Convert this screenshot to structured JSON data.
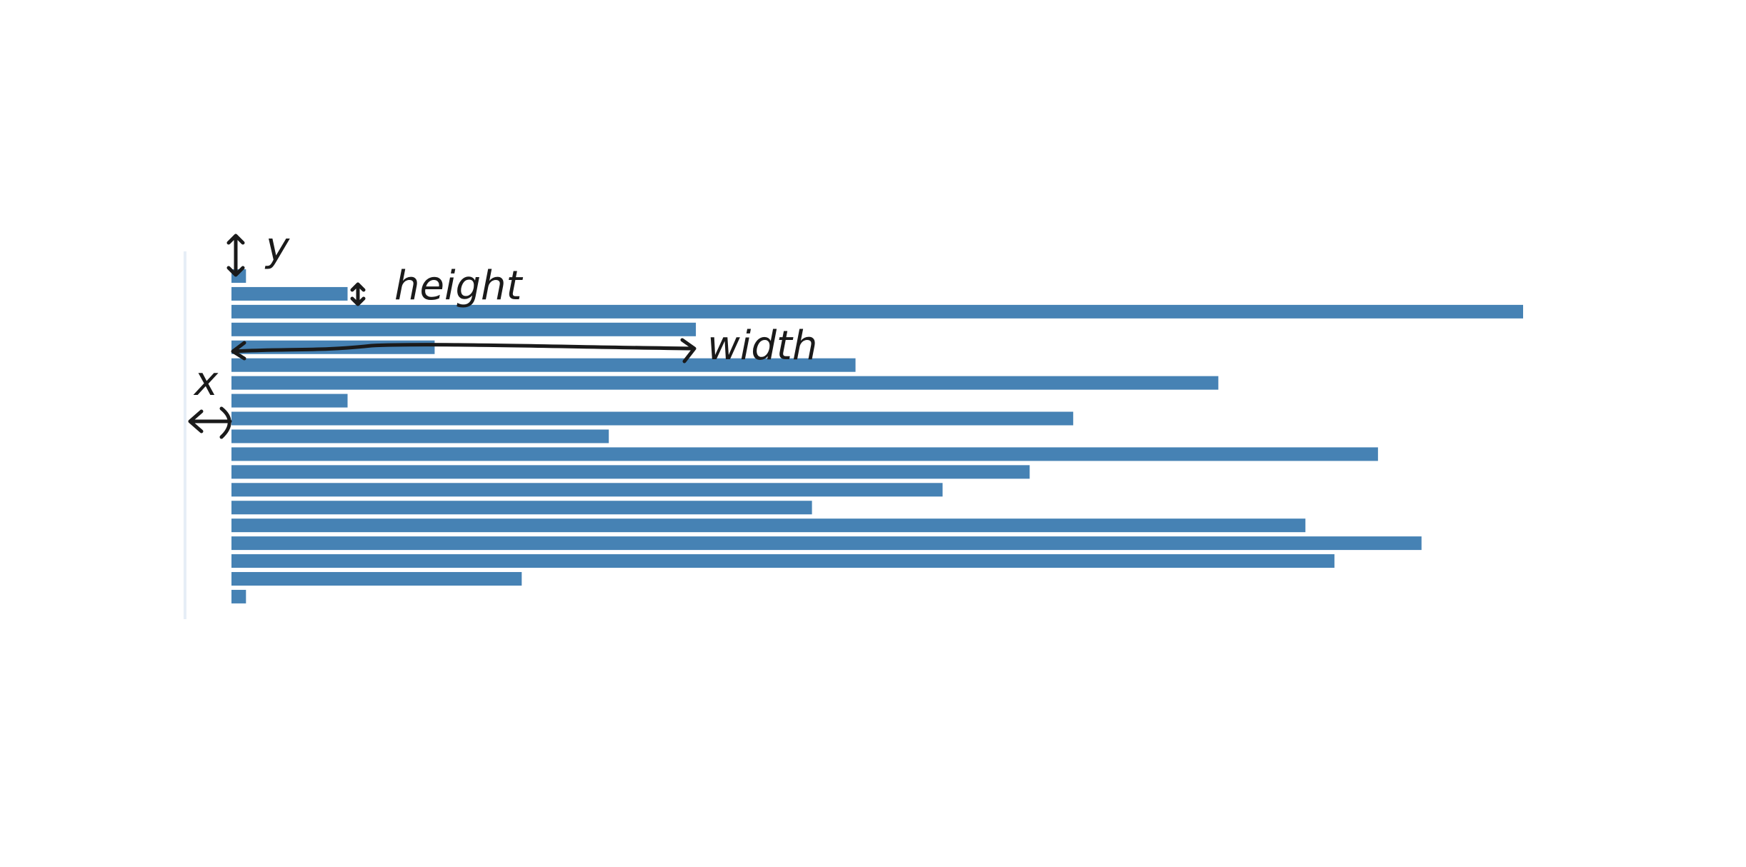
{
  "chart_data": {
    "type": "bar",
    "orientation": "horizontal",
    "values": [
      1,
      8,
      89,
      32,
      14,
      43,
      68,
      8,
      58,
      26,
      79,
      55,
      49,
      40,
      74,
      82,
      76,
      20,
      1
    ],
    "color": "#4682b4",
    "annotations": [
      "y",
      "height",
      "width",
      "x"
    ]
  }
}
